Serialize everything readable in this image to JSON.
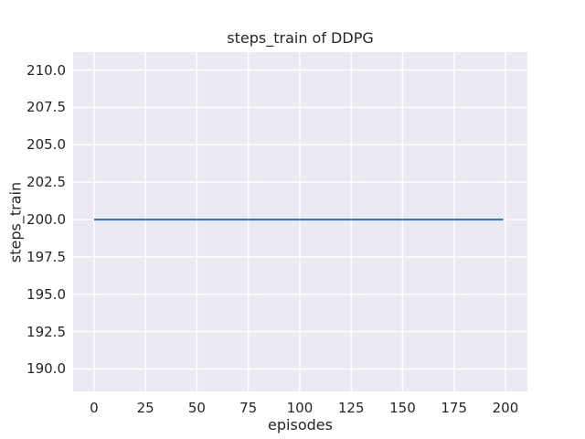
{
  "figure": {
    "title": "steps_train of DDPG",
    "xlabel": "episodes",
    "ylabel": "steps_train"
  },
  "chart_data": {
    "type": "line",
    "title": "steps_train of DDPG",
    "xlabel": "episodes",
    "ylabel": "steps_train",
    "xlim": [
      -10.2,
      210.7
    ],
    "ylim": [
      188.5,
      211.2
    ],
    "xticks": [
      0,
      25,
      50,
      75,
      100,
      125,
      150,
      175,
      200
    ],
    "yticks": [
      190.0,
      192.5,
      195.0,
      197.5,
      200.0,
      202.5,
      205.0,
      207.5,
      210.0
    ],
    "ytick_decimals": 1,
    "grid": true,
    "legend": "none",
    "series": [
      {
        "name": "steps_train",
        "x": [
          0,
          199
        ],
        "y": [
          200,
          200
        ],
        "color": "#4c72b0",
        "linewidth": 2.2
      }
    ],
    "style": {
      "figure_background": "#ffffff",
      "plot_background": "#eaeaf2",
      "grid_color": "#ffffff",
      "grid_linewidth": 1.4,
      "text_color": "#262626"
    }
  }
}
